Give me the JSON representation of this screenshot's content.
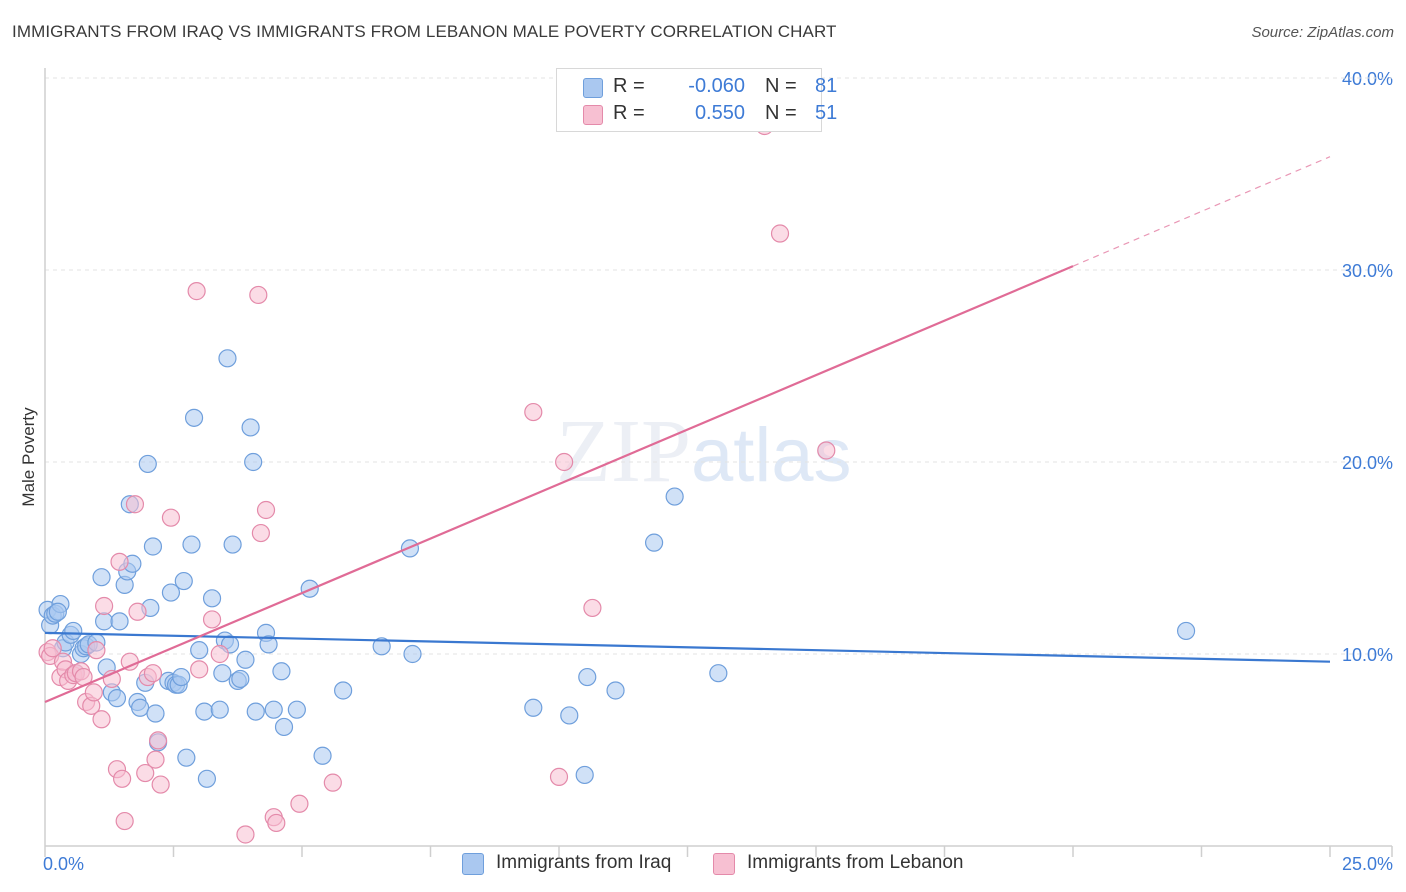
{
  "title": "IMMIGRANTS FROM IRAQ VS IMMIGRANTS FROM LEBANON MALE POVERTY CORRELATION CHART",
  "source": "Source: ZipAtlas.com",
  "watermark": {
    "zip": "ZIP",
    "atlas": "atlas"
  },
  "legend": {
    "rows": [
      {
        "r_label": "R =",
        "r_value": "-0.060",
        "n_label": "N =",
        "n_value": "81"
      },
      {
        "r_label": "R =",
        "r_value": "0.550",
        "n_label": "N =",
        "n_value": "51"
      }
    ]
  },
  "bottom_legend": [
    "Immigrants from Iraq",
    "Immigrants from Lebanon"
  ],
  "colors": {
    "iraq_fill": "#aac8f0",
    "iraq_stroke": "#6f9fdc",
    "iraq_line": "#3a78d0",
    "lebanon_fill": "#f7c0d2",
    "lebanon_stroke": "#e48aaa",
    "lebanon_line": "#e06b96",
    "tick_label": "#3e7bd6",
    "grid": "#e3e3e3"
  },
  "chart_data": {
    "type": "scatter",
    "title": "IMMIGRANTS FROM IRAQ VS IMMIGRANTS FROM LEBANON MALE POVERTY CORRELATION CHART",
    "xlabel": "",
    "ylabel": "Male Poverty",
    "xlim": [
      0,
      25
    ],
    "ylim": [
      0,
      40
    ],
    "x_tick_labels": [
      "0.0%",
      "25.0%"
    ],
    "y_ticks": [
      10,
      20,
      30,
      40
    ],
    "y_tick_labels": [
      "10.0%",
      "20.0%",
      "30.0%",
      "40.0%"
    ],
    "series": [
      {
        "name": "Immigrants from Iraq",
        "r": -0.06,
        "n": 81,
        "trend": {
          "x0": 0,
          "y0": 11.1,
          "x1": 25,
          "y1": 9.6
        },
        "points": [
          [
            0.05,
            12.3
          ],
          [
            0.1,
            11.5
          ],
          [
            0.15,
            12.0
          ],
          [
            0.2,
            12.1
          ],
          [
            0.3,
            12.6
          ],
          [
            0.35,
            10.3
          ],
          [
            0.4,
            10.6
          ],
          [
            0.5,
            11.0
          ],
          [
            0.55,
            11.2
          ],
          [
            0.6,
            9.0
          ],
          [
            0.7,
            10.0
          ],
          [
            0.75,
            10.3
          ],
          [
            0.8,
            10.4
          ],
          [
            0.85,
            10.5
          ],
          [
            1.1,
            14.0
          ],
          [
            1.15,
            11.7
          ],
          [
            1.2,
            9.3
          ],
          [
            1.3,
            8.0
          ],
          [
            1.4,
            7.7
          ],
          [
            1.45,
            11.7
          ],
          [
            1.55,
            13.6
          ],
          [
            1.6,
            14.3
          ],
          [
            1.7,
            14.7
          ],
          [
            1.65,
            17.8
          ],
          [
            1.8,
            7.5
          ],
          [
            1.85,
            7.2
          ],
          [
            1.95,
            8.5
          ],
          [
            2.0,
            19.9
          ],
          [
            2.05,
            12.4
          ],
          [
            2.1,
            15.6
          ],
          [
            2.15,
            6.9
          ],
          [
            2.2,
            5.4
          ],
          [
            2.4,
            8.6
          ],
          [
            2.45,
            13.2
          ],
          [
            2.5,
            8.5
          ],
          [
            2.55,
            8.4
          ],
          [
            2.6,
            8.4
          ],
          [
            2.65,
            8.8
          ],
          [
            2.7,
            13.8
          ],
          [
            2.75,
            4.6
          ],
          [
            2.85,
            15.7
          ],
          [
            2.9,
            22.3
          ],
          [
            3.0,
            10.2
          ],
          [
            3.1,
            7.0
          ],
          [
            3.15,
            3.5
          ],
          [
            3.25,
            12.9
          ],
          [
            3.4,
            7.1
          ],
          [
            3.45,
            9.0
          ],
          [
            3.5,
            10.7
          ],
          [
            3.55,
            25.4
          ],
          [
            3.6,
            10.5
          ],
          [
            3.65,
            15.7
          ],
          [
            3.75,
            8.6
          ],
          [
            3.8,
            8.7
          ],
          [
            3.9,
            9.7
          ],
          [
            4.0,
            21.8
          ],
          [
            4.05,
            20.0
          ],
          [
            4.1,
            7.0
          ],
          [
            4.3,
            11.1
          ],
          [
            4.35,
            10.5
          ],
          [
            4.45,
            7.1
          ],
          [
            4.6,
            9.1
          ],
          [
            4.65,
            6.2
          ],
          [
            4.9,
            7.1
          ],
          [
            5.15,
            13.4
          ],
          [
            5.4,
            4.7
          ],
          [
            5.8,
            8.1
          ],
          [
            6.55,
            10.4
          ],
          [
            7.1,
            15.5
          ],
          [
            7.15,
            10.0
          ],
          [
            9.5,
            7.2
          ],
          [
            10.2,
            6.8
          ],
          [
            10.5,
            3.7
          ],
          [
            10.55,
            8.8
          ],
          [
            11.1,
            8.1
          ],
          [
            11.85,
            15.8
          ],
          [
            12.25,
            18.2
          ],
          [
            13.1,
            9.0
          ],
          [
            22.2,
            11.2
          ],
          [
            0.25,
            12.2
          ],
          [
            1.0,
            10.6
          ]
        ]
      },
      {
        "name": "Immigrants from Lebanon",
        "r": 0.55,
        "n": 51,
        "trend": {
          "x0": 0,
          "y0": 7.5,
          "x1": 20.0,
          "y1": 30.2
        },
        "trend_dashed": {
          "x0": 20.0,
          "y0": 30.2,
          "x1": 25,
          "y1": 35.9
        },
        "points": [
          [
            0.05,
            10.1
          ],
          [
            0.1,
            9.9
          ],
          [
            0.15,
            10.3
          ],
          [
            0.3,
            8.8
          ],
          [
            0.35,
            9.6
          ],
          [
            0.4,
            9.2
          ],
          [
            0.45,
            8.6
          ],
          [
            0.55,
            8.9
          ],
          [
            0.6,
            9.0
          ],
          [
            0.7,
            9.1
          ],
          [
            0.75,
            8.8
          ],
          [
            0.8,
            7.5
          ],
          [
            0.9,
            7.3
          ],
          [
            0.95,
            8.0
          ],
          [
            1.0,
            10.2
          ],
          [
            1.1,
            6.6
          ],
          [
            1.15,
            12.5
          ],
          [
            1.3,
            8.7
          ],
          [
            1.4,
            4.0
          ],
          [
            1.45,
            14.8
          ],
          [
            1.5,
            3.5
          ],
          [
            1.55,
            1.3
          ],
          [
            1.65,
            9.6
          ],
          [
            1.75,
            17.8
          ],
          [
            1.8,
            12.2
          ],
          [
            1.95,
            3.8
          ],
          [
            2.0,
            8.8
          ],
          [
            2.1,
            9.0
          ],
          [
            2.15,
            4.5
          ],
          [
            2.2,
            5.5
          ],
          [
            2.25,
            3.2
          ],
          [
            2.45,
            17.1
          ],
          [
            2.95,
            28.9
          ],
          [
            3.0,
            9.2
          ],
          [
            3.25,
            11.8
          ],
          [
            3.4,
            10.0
          ],
          [
            3.9,
            0.6
          ],
          [
            4.15,
            28.7
          ],
          [
            4.2,
            16.3
          ],
          [
            4.3,
            17.5
          ],
          [
            4.45,
            1.5
          ],
          [
            4.5,
            1.2
          ],
          [
            4.95,
            2.2
          ],
          [
            5.6,
            3.3
          ],
          [
            9.5,
            22.6
          ],
          [
            10.0,
            3.6
          ],
          [
            10.1,
            20.0
          ],
          [
            10.65,
            12.4
          ],
          [
            14.0,
            37.5
          ],
          [
            14.3,
            31.9
          ],
          [
            15.2,
            20.6
          ]
        ]
      }
    ]
  }
}
